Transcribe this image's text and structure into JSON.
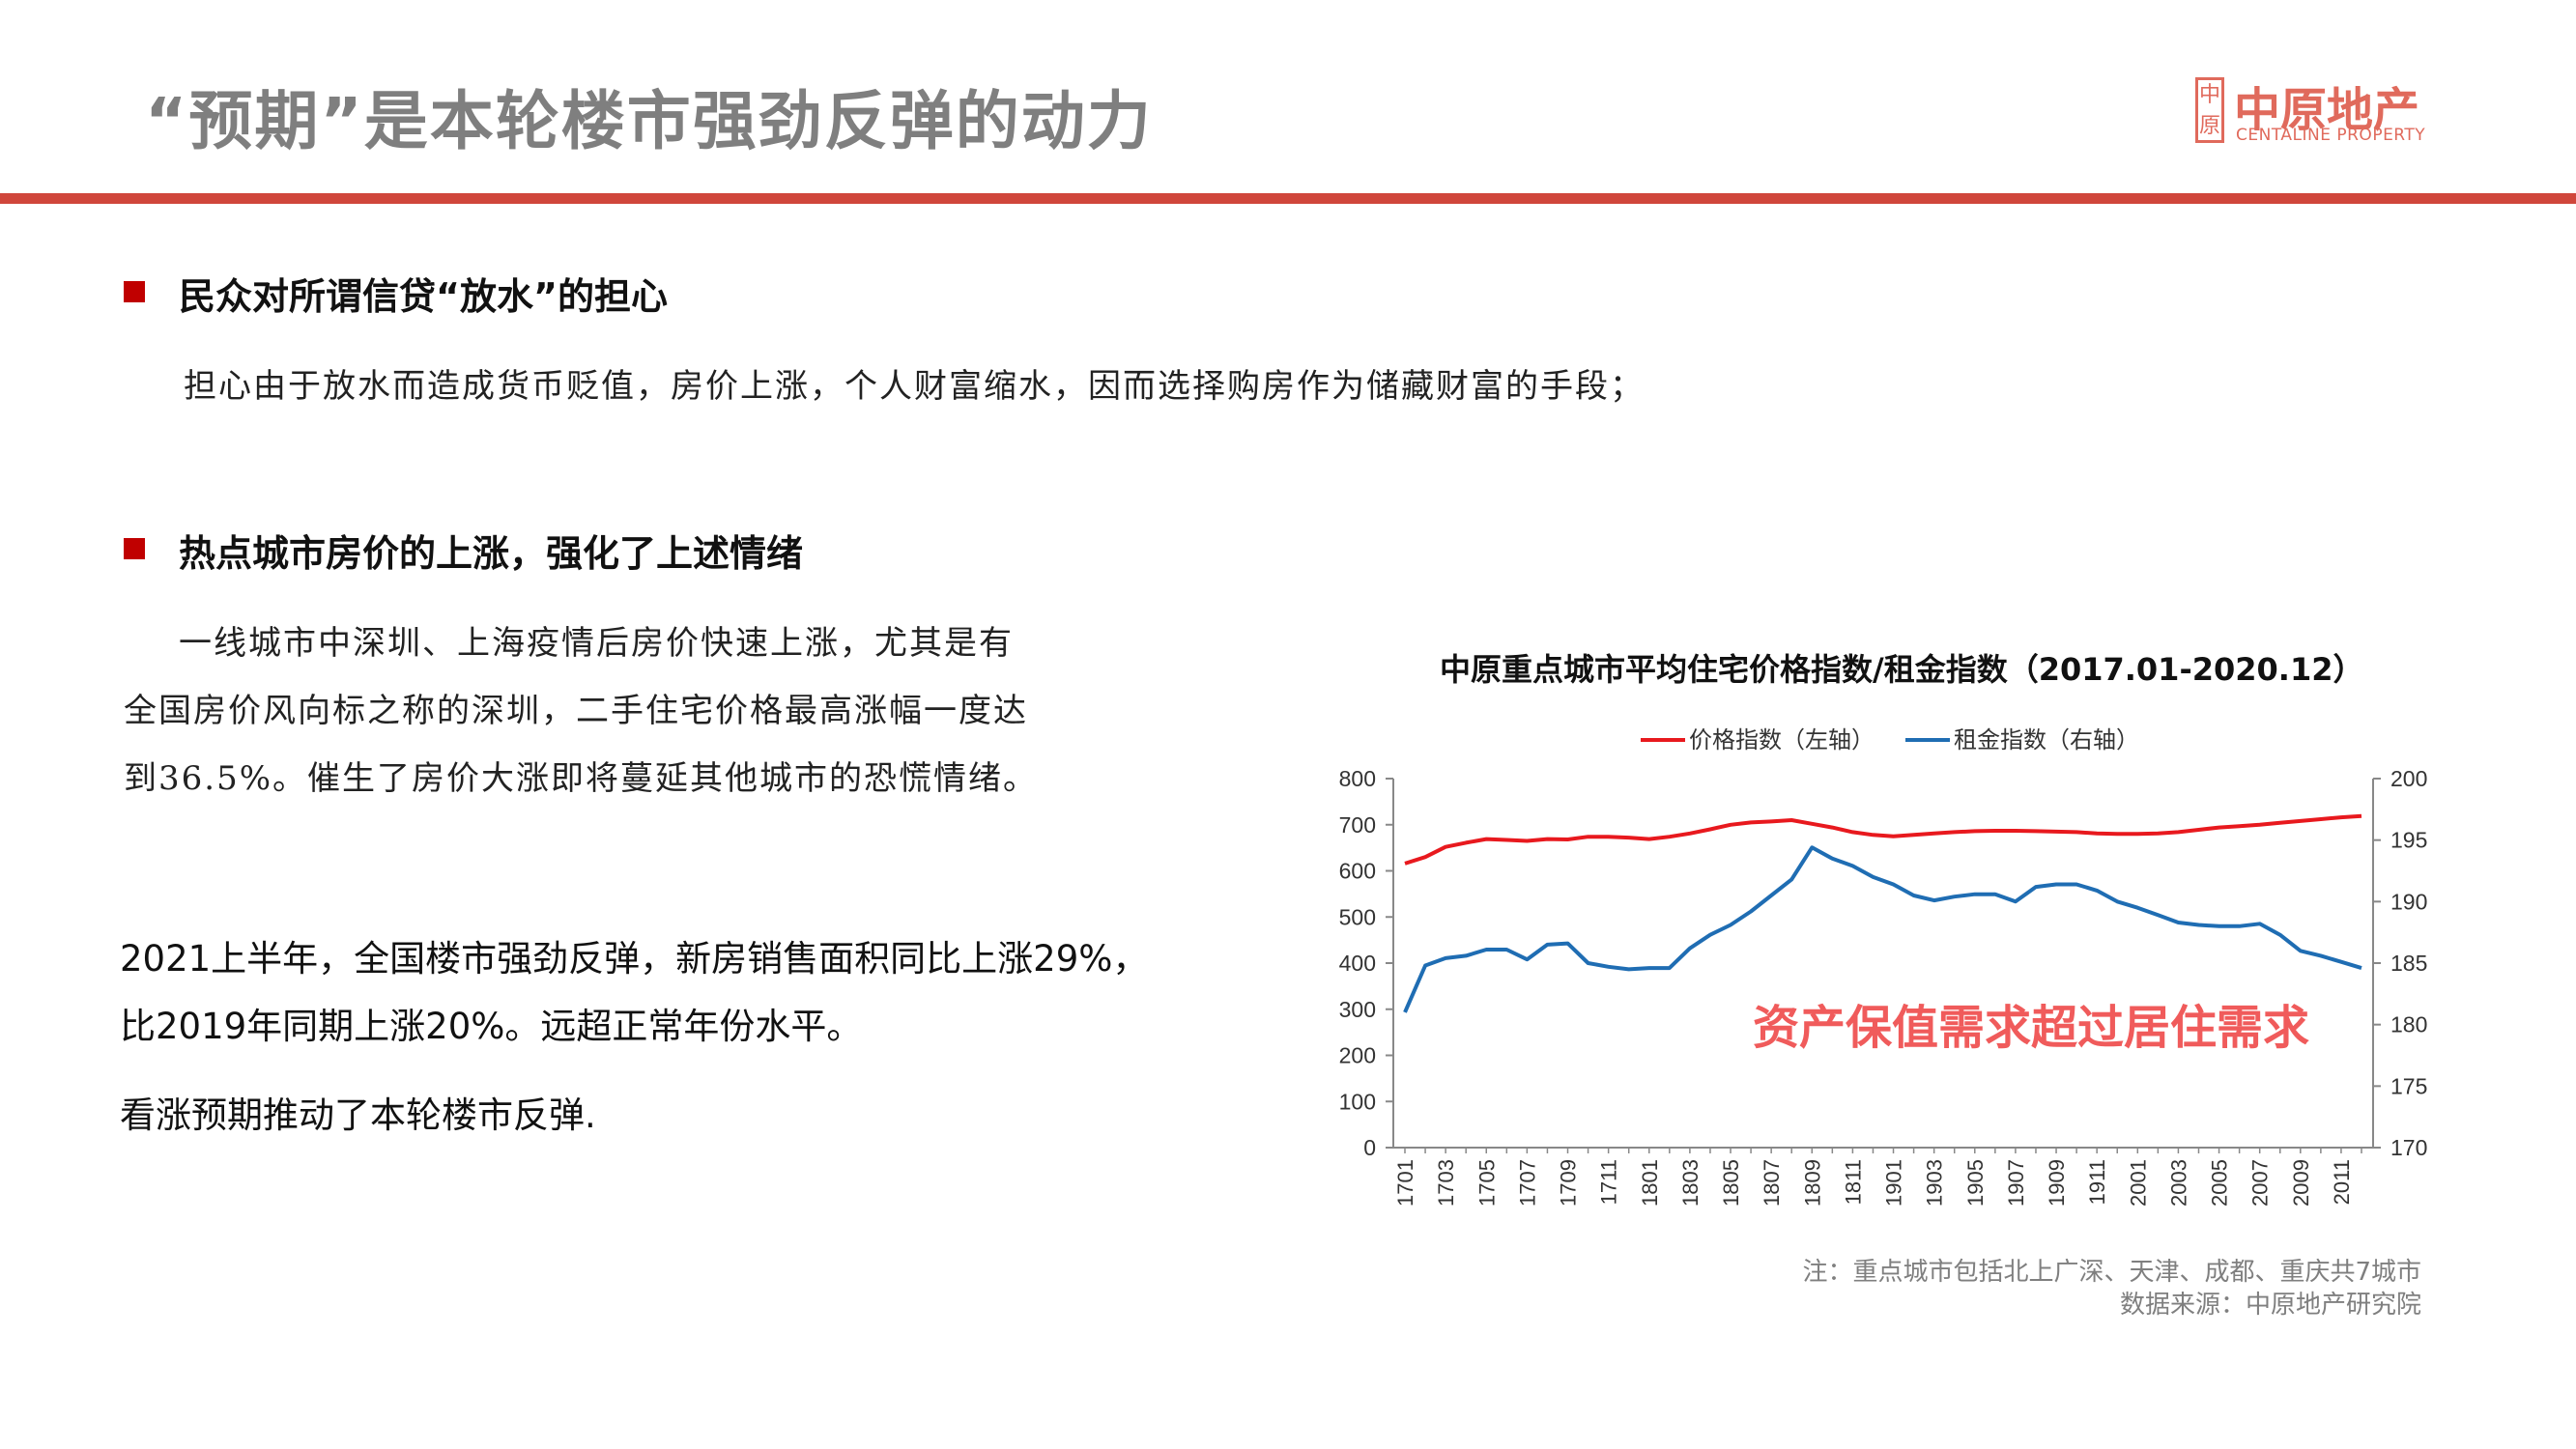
{
  "title": "“预期”是本轮楼市强劲反弹的动力",
  "logo": {
    "seal": "中原",
    "cn": "中原地产",
    "en": "CENTALINE PROPERTY"
  },
  "section1": {
    "heading": "民众对所谓信贷“放水”的担心",
    "text": "担心由于放水而造成货币贬值，房价上涨，个人财富缩水，因而选择购房作为储藏财富的手段；"
  },
  "section2": {
    "heading": "热点城市房价的上涨，强化了上述情绪",
    "lines": [
      "一线城市中深圳、上海疫情后房价快速上涨，尤其是有",
      "全国房价风向标之称的深圳，二手住宅价格最高涨幅一度达",
      "到36.5%。催生了房价大涨即将蔓延其他城市的恐慌情绪。"
    ]
  },
  "summary": {
    "lines": [
      "2021上半年，全国楼市强劲反弹，新房销售面积同比上涨29%，",
      "比2019年同期上涨20%。远超正常年份水平。"
    ],
    "conclusion": "看涨预期推动了本轮楼市反弹."
  },
  "chart_data": {
    "type": "line",
    "title": "中原重点城市平均住宅价格指数/租金指数（2017.01-2020.12）",
    "legend_position": "top",
    "grid": false,
    "x_tick_labels": [
      "1701",
      "1703",
      "1705",
      "1707",
      "1709",
      "1711",
      "1801",
      "1803",
      "1805",
      "1807",
      "1809",
      "1811",
      "1901",
      "1903",
      "1905",
      "1907",
      "1909",
      "1911",
      "2001",
      "2003",
      "2005",
      "2007",
      "2009",
      "2011"
    ],
    "left_axis": {
      "min": 0,
      "max": 800,
      "step": 100,
      "ticks": [
        "0",
        "100",
        "200",
        "300",
        "400",
        "500",
        "600",
        "700",
        "800"
      ]
    },
    "right_axis": {
      "min": 170,
      "max": 200,
      "step": 5,
      "ticks": [
        "170",
        "175",
        "180",
        "185",
        "190",
        "195",
        "200"
      ]
    },
    "series": [
      {
        "name": "价格指数（左轴）",
        "axis": "left",
        "color": "#e8191e",
        "values": [
          616,
          630,
          652,
          661,
          669,
          667,
          665,
          669,
          668,
          674,
          674,
          672,
          669,
          674,
          681,
          690,
          700,
          705,
          707,
          710,
          702,
          694,
          684,
          678,
          675,
          678,
          681,
          684,
          686,
          687,
          687,
          686,
          685,
          684,
          681,
          680,
          680,
          681,
          684,
          689,
          694,
          697,
          700,
          704,
          708,
          712,
          716,
          719
        ]
      },
      {
        "name": "租金指数（右轴）",
        "axis": "right",
        "color": "#1f6db3",
        "values": [
          181.0,
          184.8,
          185.4,
          185.6,
          186.1,
          186.1,
          185.3,
          186.5,
          186.6,
          185.0,
          184.7,
          184.5,
          184.6,
          184.6,
          186.2,
          187.3,
          188.1,
          189.2,
          190.5,
          191.8,
          194.4,
          193.5,
          192.9,
          192.0,
          191.4,
          190.5,
          190.1,
          190.4,
          190.6,
          190.6,
          190.0,
          191.2,
          191.4,
          191.4,
          190.9,
          190.0,
          189.5,
          188.9,
          188.3,
          188.1,
          188.0,
          188.0,
          188.2,
          187.3,
          186.0,
          185.6,
          185.1,
          184.6
        ]
      }
    ],
    "annotation": "资产保值需求超过居住需求",
    "notes": [
      "注：重点城市包括北上广深、天津、成都、重庆共7城市",
      "数据来源：中原地产研究院"
    ]
  }
}
